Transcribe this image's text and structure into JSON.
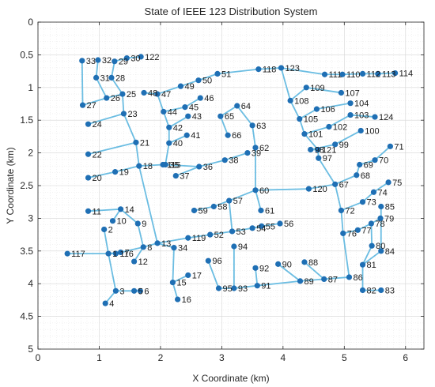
{
  "chart_data": {
    "type": "network",
    "title": "State of IEEE 123 Distribution System",
    "xlabel": "X Coordinate (km)",
    "ylabel": "Y Coordinate (km)",
    "xlim": [
      0,
      6.3
    ],
    "ylim": [
      0,
      5
    ],
    "y_reversed": true,
    "xticks": [
      "0",
      "1",
      "2",
      "3",
      "4",
      "5",
      "6"
    ],
    "yticks": [
      "0",
      "0.5",
      "1",
      "1.5",
      "2",
      "2.5",
      "3",
      "3.5",
      "4",
      "4.5",
      "5"
    ],
    "grid": true,
    "minor_grid": true,
    "colors": {
      "edge": "#6bbde2",
      "node": "#1f6fb4",
      "axis": "#262626"
    },
    "nodes": [
      {
        "id": "1",
        "x": 1.15,
        "y": 3.54
      },
      {
        "id": "2",
        "x": 1.08,
        "y": 3.17
      },
      {
        "id": "3",
        "x": 1.27,
        "y": 4.11
      },
      {
        "id": "4",
        "x": 1.1,
        "y": 4.3
      },
      {
        "id": "5",
        "x": 1.57,
        "y": 4.11
      },
      {
        "id": "6",
        "x": 1.67,
        "y": 4.11
      },
      {
        "id": "7",
        "x": 1.35,
        "y": 3.52
      },
      {
        "id": "8",
        "x": 1.72,
        "y": 3.44
      },
      {
        "id": "9",
        "x": 1.63,
        "y": 3.08
      },
      {
        "id": "10",
        "x": 1.22,
        "y": 3.04
      },
      {
        "id": "11",
        "x": 0.82,
        "y": 2.89
      },
      {
        "id": "12",
        "x": 1.57,
        "y": 3.66
      },
      {
        "id": "13",
        "x": 1.95,
        "y": 3.38
      },
      {
        "id": "14",
        "x": 1.35,
        "y": 2.86
      },
      {
        "id": "15",
        "x": 2.2,
        "y": 3.98
      },
      {
        "id": "16",
        "x": 2.28,
        "y": 4.24
      },
      {
        "id": "17",
        "x": 2.45,
        "y": 3.87
      },
      {
        "id": "18",
        "x": 1.65,
        "y": 2.2
      },
      {
        "id": "19",
        "x": 1.26,
        "y": 2.29
      },
      {
        "id": "20",
        "x": 0.82,
        "y": 2.38
      },
      {
        "id": "21",
        "x": 1.6,
        "y": 1.84
      },
      {
        "id": "22",
        "x": 0.82,
        "y": 2.02
      },
      {
        "id": "23",
        "x": 1.4,
        "y": 1.4
      },
      {
        "id": "24",
        "x": 0.82,
        "y": 1.56
      },
      {
        "id": "25",
        "x": 1.38,
        "y": 1.1
      },
      {
        "id": "26",
        "x": 1.12,
        "y": 1.16
      },
      {
        "id": "27",
        "x": 0.73,
        "y": 1.27
      },
      {
        "id": "28",
        "x": 1.2,
        "y": 0.85
      },
      {
        "id": "29",
        "x": 1.25,
        "y": 0.6
      },
      {
        "id": "30",
        "x": 1.45,
        "y": 0.55
      },
      {
        "id": "31",
        "x": 0.95,
        "y": 0.85
      },
      {
        "id": "32",
        "x": 0.98,
        "y": 0.58
      },
      {
        "id": "33",
        "x": 0.72,
        "y": 0.59
      },
      {
        "id": "34",
        "x": 2.22,
        "y": 3.45
      },
      {
        "id": "35",
        "x": 2.08,
        "y": 2.18
      },
      {
        "id": "36",
        "x": 2.63,
        "y": 2.21
      },
      {
        "id": "37",
        "x": 2.25,
        "y": 2.35
      },
      {
        "id": "38",
        "x": 3.05,
        "y": 2.11
      },
      {
        "id": "39",
        "x": 3.42,
        "y": 2.0
      },
      {
        "id": "40",
        "x": 2.14,
        "y": 1.85
      },
      {
        "id": "41",
        "x": 2.43,
        "y": 1.73
      },
      {
        "id": "42",
        "x": 2.14,
        "y": 1.61
      },
      {
        "id": "43",
        "x": 2.45,
        "y": 1.44
      },
      {
        "id": "44",
        "x": 2.05,
        "y": 1.37
      },
      {
        "id": "45",
        "x": 2.4,
        "y": 1.3
      },
      {
        "id": "46",
        "x": 2.65,
        "y": 1.16
      },
      {
        "id": "47",
        "x": 1.95,
        "y": 1.1
      },
      {
        "id": "48",
        "x": 1.73,
        "y": 1.08
      },
      {
        "id": "49",
        "x": 2.33,
        "y": 0.98
      },
      {
        "id": "50",
        "x": 2.62,
        "y": 0.89
      },
      {
        "id": "51",
        "x": 2.93,
        "y": 0.79
      },
      {
        "id": "52",
        "x": 2.81,
        "y": 3.25
      },
      {
        "id": "53",
        "x": 3.17,
        "y": 3.2
      },
      {
        "id": "54",
        "x": 3.5,
        "y": 3.15
      },
      {
        "id": "55",
        "x": 3.65,
        "y": 3.12
      },
      {
        "id": "56",
        "x": 3.95,
        "y": 3.08
      },
      {
        "id": "57",
        "x": 3.12,
        "y": 2.73
      },
      {
        "id": "58",
        "x": 2.87,
        "y": 2.82
      },
      {
        "id": "59",
        "x": 2.55,
        "y": 2.88
      },
      {
        "id": "60",
        "x": 3.55,
        "y": 2.57
      },
      {
        "id": "61",
        "x": 3.64,
        "y": 2.88
      },
      {
        "id": "62",
        "x": 3.55,
        "y": 1.92
      },
      {
        "id": "63",
        "x": 3.5,
        "y": 1.58
      },
      {
        "id": "64",
        "x": 3.25,
        "y": 1.28
      },
      {
        "id": "65",
        "x": 2.98,
        "y": 1.44
      },
      {
        "id": "66",
        "x": 3.1,
        "y": 1.73
      },
      {
        "id": "67",
        "x": 4.85,
        "y": 2.48
      },
      {
        "id": "68",
        "x": 5.2,
        "y": 2.34
      },
      {
        "id": "69",
        "x": 5.25,
        "y": 2.18
      },
      {
        "id": "70",
        "x": 5.5,
        "y": 2.11
      },
      {
        "id": "71",
        "x": 5.75,
        "y": 1.9
      },
      {
        "id": "72",
        "x": 4.95,
        "y": 2.88
      },
      {
        "id": "73",
        "x": 5.3,
        "y": 2.75
      },
      {
        "id": "74",
        "x": 5.48,
        "y": 2.6
      },
      {
        "id": "75",
        "x": 5.72,
        "y": 2.45
      },
      {
        "id": "76",
        "x": 4.98,
        "y": 3.23
      },
      {
        "id": "77",
        "x": 5.22,
        "y": 3.18
      },
      {
        "id": "78",
        "x": 5.44,
        "y": 3.08
      },
      {
        "id": "79",
        "x": 5.59,
        "y": 3.0
      },
      {
        "id": "80",
        "x": 5.45,
        "y": 3.42
      },
      {
        "id": "81",
        "x": 5.3,
        "y": 3.71
      },
      {
        "id": "82",
        "x": 5.3,
        "y": 4.1
      },
      {
        "id": "83",
        "x": 5.6,
        "y": 4.1
      },
      {
        "id": "84",
        "x": 5.6,
        "y": 3.5
      },
      {
        "id": "85",
        "x": 5.6,
        "y": 2.82
      },
      {
        "id": "86",
        "x": 5.08,
        "y": 3.9
      },
      {
        "id": "87",
        "x": 4.67,
        "y": 3.93
      },
      {
        "id": "88",
        "x": 4.35,
        "y": 3.67
      },
      {
        "id": "89",
        "x": 4.28,
        "y": 3.96
      },
      {
        "id": "90",
        "x": 3.92,
        "y": 3.7
      },
      {
        "id": "91",
        "x": 3.58,
        "y": 4.03
      },
      {
        "id": "92",
        "x": 3.55,
        "y": 3.76
      },
      {
        "id": "93",
        "x": 3.2,
        "y": 4.07
      },
      {
        "id": "94",
        "x": 3.2,
        "y": 3.43
      },
      {
        "id": "95",
        "x": 2.95,
        "y": 4.07
      },
      {
        "id": "96",
        "x": 2.78,
        "y": 3.65
      },
      {
        "id": "97",
        "x": 4.58,
        "y": 2.08
      },
      {
        "id": "98",
        "x": 4.45,
        "y": 1.95
      },
      {
        "id": "99",
        "x": 4.85,
        "y": 1.87
      },
      {
        "id": "100",
        "x": 5.27,
        "y": 1.66
      },
      {
        "id": "101",
        "x": 4.35,
        "y": 1.71
      },
      {
        "id": "102",
        "x": 4.75,
        "y": 1.6
      },
      {
        "id": "103",
        "x": 5.1,
        "y": 1.42
      },
      {
        "id": "104",
        "x": 5.1,
        "y": 1.24
      },
      {
        "id": "105",
        "x": 4.27,
        "y": 1.48
      },
      {
        "id": "106",
        "x": 4.55,
        "y": 1.33
      },
      {
        "id": "107",
        "x": 4.95,
        "y": 1.08
      },
      {
        "id": "108",
        "x": 4.12,
        "y": 1.2
      },
      {
        "id": "109",
        "x": 4.38,
        "y": 1.0
      },
      {
        "id": "110",
        "x": 4.97,
        "y": 0.8
      },
      {
        "id": "111",
        "x": 4.68,
        "y": 0.8
      },
      {
        "id": "112",
        "x": 5.3,
        "y": 0.79
      },
      {
        "id": "113",
        "x": 5.55,
        "y": 0.79
      },
      {
        "id": "114",
        "x": 5.83,
        "y": 0.78
      },
      {
        "id": "115",
        "x": 2.04,
        "y": 2.18
      },
      {
        "id": "116",
        "x": 1.27,
        "y": 3.54
      },
      {
        "id": "117",
        "x": 0.48,
        "y": 3.54
      },
      {
        "id": "118",
        "x": 3.6,
        "y": 0.72
      },
      {
        "id": "119",
        "x": 2.45,
        "y": 3.3
      },
      {
        "id": "120",
        "x": 4.42,
        "y": 2.55
      },
      {
        "id": "121",
        "x": 4.57,
        "y": 1.95
      },
      {
        "id": "122",
        "x": 1.68,
        "y": 0.53
      },
      {
        "id": "123",
        "x": 3.97,
        "y": 0.7
      },
      {
        "id": "124",
        "x": 5.5,
        "y": 1.45
      }
    ],
    "edges": [
      [
        "117",
        "116"
      ],
      [
        "116",
        "1"
      ],
      [
        "1",
        "7"
      ],
      [
        "7",
        "8"
      ],
      [
        "8",
        "13"
      ],
      [
        "13",
        "119"
      ],
      [
        "119",
        "52"
      ],
      [
        "52",
        "53"
      ],
      [
        "53",
        "54"
      ],
      [
        "54",
        "55"
      ],
      [
        "55",
        "56"
      ],
      [
        "1",
        "2"
      ],
      [
        "1",
        "3"
      ],
      [
        "3",
        "4"
      ],
      [
        "3",
        "5"
      ],
      [
        "5",
        "6"
      ],
      [
        "8",
        "12"
      ],
      [
        "8",
        "9"
      ],
      [
        "9",
        "14"
      ],
      [
        "14",
        "10"
      ],
      [
        "14",
        "11"
      ],
      [
        "13",
        "34"
      ],
      [
        "34",
        "15"
      ],
      [
        "15",
        "16"
      ],
      [
        "15",
        "17"
      ],
      [
        "13",
        "18"
      ],
      [
        "18",
        "19"
      ],
      [
        "19",
        "20"
      ],
      [
        "18",
        "21"
      ],
      [
        "21",
        "22"
      ],
      [
        "21",
        "23"
      ],
      [
        "23",
        "24"
      ],
      [
        "23",
        "25"
      ],
      [
        "25",
        "26"
      ],
      [
        "26",
        "27"
      ],
      [
        "27",
        "33"
      ],
      [
        "26",
        "31"
      ],
      [
        "31",
        "32"
      ],
      [
        "25",
        "28"
      ],
      [
        "28",
        "29"
      ],
      [
        "29",
        "30"
      ],
      [
        "30",
        "122"
      ],
      [
        "18",
        "115"
      ],
      [
        "115",
        "35"
      ],
      [
        "35",
        "36"
      ],
      [
        "36",
        "37"
      ],
      [
        "36",
        "38"
      ],
      [
        "38",
        "39"
      ],
      [
        "35",
        "40"
      ],
      [
        "40",
        "41"
      ],
      [
        "40",
        "42"
      ],
      [
        "42",
        "43"
      ],
      [
        "42",
        "44"
      ],
      [
        "44",
        "45"
      ],
      [
        "45",
        "46"
      ],
      [
        "44",
        "47"
      ],
      [
        "47",
        "48"
      ],
      [
        "47",
        "49"
      ],
      [
        "49",
        "50"
      ],
      [
        "50",
        "51"
      ],
      [
        "51",
        "118"
      ],
      [
        "118",
        "123"
      ],
      [
        "123",
        "111"
      ],
      [
        "111",
        "110"
      ],
      [
        "110",
        "112"
      ],
      [
        "112",
        "113"
      ],
      [
        "113",
        "114"
      ],
      [
        "123",
        "108"
      ],
      [
        "108",
        "109"
      ],
      [
        "109",
        "107"
      ],
      [
        "108",
        "105"
      ],
      [
        "105",
        "106"
      ],
      [
        "106",
        "104"
      ],
      [
        "105",
        "101"
      ],
      [
        "101",
        "102"
      ],
      [
        "102",
        "103"
      ],
      [
        "103",
        "124"
      ],
      [
        "101",
        "121"
      ],
      [
        "121",
        "98"
      ],
      [
        "98",
        "99"
      ],
      [
        "99",
        "100"
      ],
      [
        "121",
        "97"
      ],
      [
        "97",
        "67"
      ],
      [
        "53",
        "57"
      ],
      [
        "57",
        "58"
      ],
      [
        "58",
        "59"
      ],
      [
        "57",
        "60"
      ],
      [
        "60",
        "61"
      ],
      [
        "60",
        "62"
      ],
      [
        "62",
        "63"
      ],
      [
        "63",
        "64"
      ],
      [
        "64",
        "65"
      ],
      [
        "65",
        "66"
      ],
      [
        "60",
        "120"
      ],
      [
        "120",
        "67"
      ],
      [
        "67",
        "68"
      ],
      [
        "68",
        "69"
      ],
      [
        "69",
        "70"
      ],
      [
        "70",
        "71"
      ],
      [
        "67",
        "72"
      ],
      [
        "72",
        "73"
      ],
      [
        "73",
        "74"
      ],
      [
        "74",
        "75"
      ],
      [
        "72",
        "76"
      ],
      [
        "76",
        "77"
      ],
      [
        "77",
        "78"
      ],
      [
        "78",
        "79"
      ],
      [
        "78",
        "80"
      ],
      [
        "80",
        "81"
      ],
      [
        "81",
        "82"
      ],
      [
        "82",
        "83"
      ],
      [
        "81",
        "84"
      ],
      [
        "84",
        "85"
      ],
      [
        "76",
        "86"
      ],
      [
        "86",
        "87"
      ],
      [
        "87",
        "88"
      ],
      [
        "87",
        "89"
      ],
      [
        "89",
        "90"
      ],
      [
        "89",
        "91"
      ],
      [
        "91",
        "92"
      ],
      [
        "91",
        "93"
      ],
      [
        "93",
        "94"
      ],
      [
        "93",
        "95"
      ],
      [
        "95",
        "96"
      ]
    ]
  }
}
